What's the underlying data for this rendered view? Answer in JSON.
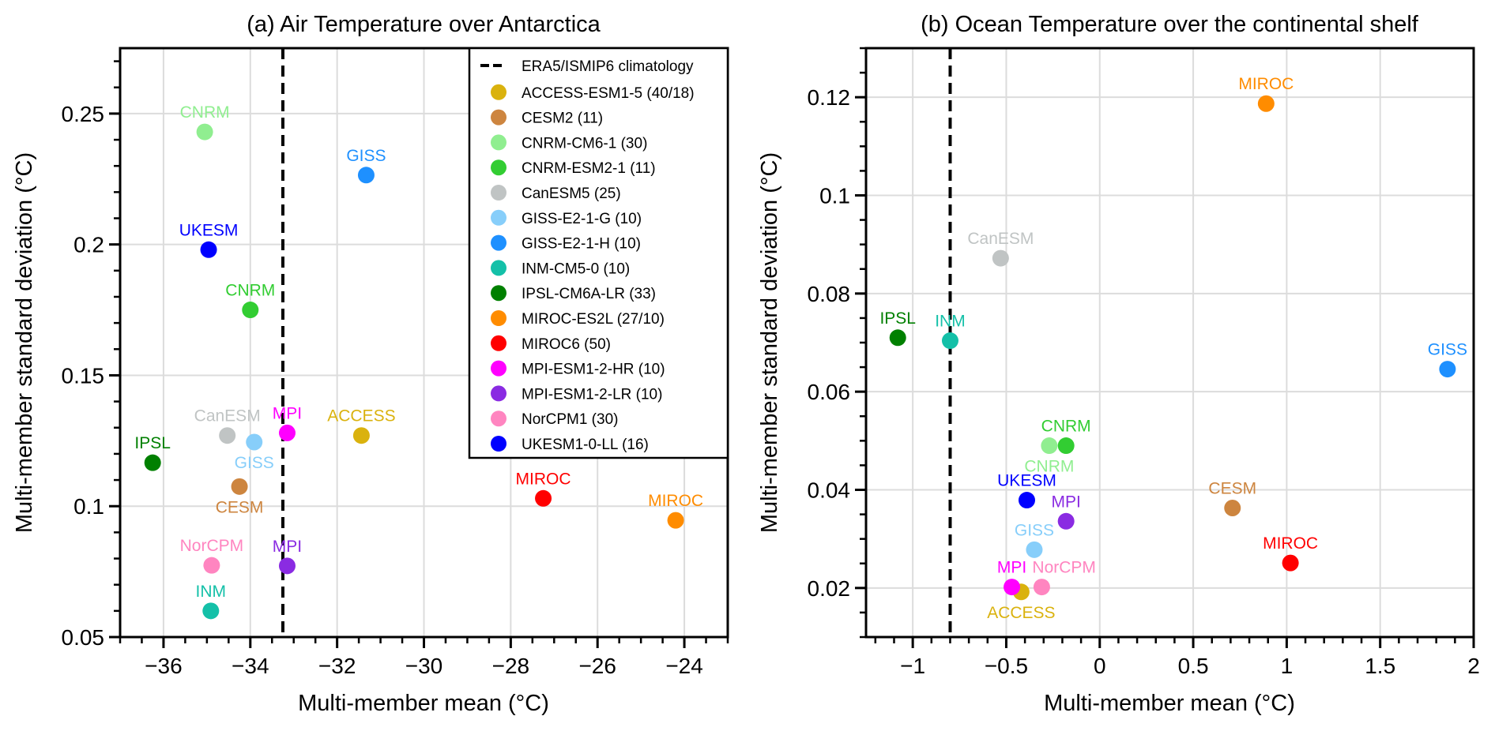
{
  "chart_data": [
    {
      "type": "scatter",
      "title": "(a) Air Temperature over Antarctica",
      "xlabel": "Multi-member mean (°C)",
      "ylabel": "Multi-member standard deviation (°C)",
      "xlim": [
        -37,
        -23
      ],
      "ylim": [
        0.05,
        0.275
      ],
      "xticks": [
        -36,
        -34,
        -32,
        -30,
        -28,
        -26,
        -24
      ],
      "xtick_labels": [
        "−36",
        "−34",
        "−32",
        "−30",
        "−28",
        "−26",
        "−24"
      ],
      "x_minor_step": 0.5,
      "yticks": [
        0.05,
        0.1,
        0.15,
        0.2,
        0.25
      ],
      "ytick_labels": [
        "0.05",
        "0.1",
        "0.15",
        "0.2",
        "0.25"
      ],
      "y_minor_step": 0.01,
      "grid": true,
      "reference_line": {
        "x": -33.25,
        "label": "ERA5/ISMIP6 climatology",
        "style": "dashed"
      },
      "legend_position": "top-right",
      "points": [
        {
          "model": "ACCESS-ESM1-5",
          "label": "ACCESS",
          "x": -31.44,
          "y": 0.127,
          "label_pos": "above"
        },
        {
          "model": "CESM2",
          "label": "CESM",
          "x": -34.25,
          "y": 0.1075,
          "label_pos": "below"
        },
        {
          "model": "CNRM-CM6-1",
          "label": "CNRM",
          "x": -35.05,
          "y": 0.243,
          "label_pos": "above"
        },
        {
          "model": "CNRM-ESM2-1",
          "label": "CNRM",
          "x": -34.0,
          "y": 0.175,
          "label_pos": "above"
        },
        {
          "model": "CanESM5",
          "label": "CanESM",
          "x": -34.53,
          "y": 0.127,
          "label_pos": "above"
        },
        {
          "model": "GISS-E2-1-G",
          "label": "GISS",
          "x": -33.91,
          "y": 0.1245,
          "label_pos": "below"
        },
        {
          "model": "GISS-E2-1-H",
          "label": "GISS",
          "x": -31.33,
          "y": 0.2265,
          "label_pos": "above"
        },
        {
          "model": "INM-CM5-0",
          "label": "INM",
          "x": -34.91,
          "y": 0.06,
          "label_pos": "above"
        },
        {
          "model": "IPSL-CM6A-LR",
          "label": "IPSL",
          "x": -36.25,
          "y": 0.1166,
          "label_pos": "above"
        },
        {
          "model": "MIROC-ES2L",
          "label": "MIROC",
          "x": -24.2,
          "y": 0.0946,
          "label_pos": "above"
        },
        {
          "model": "MIROC6",
          "label": "MIROC",
          "x": -27.25,
          "y": 0.103,
          "label_pos": "above"
        },
        {
          "model": "MPI-ESM1-2-HR",
          "label": "MPI",
          "x": -33.15,
          "y": 0.128,
          "label_pos": "above"
        },
        {
          "model": "MPI-ESM1-2-LR",
          "label": "MPI",
          "x": -33.15,
          "y": 0.0772,
          "label_pos": "above"
        },
        {
          "model": "NorCPM1",
          "label": "NorCPM",
          "x": -34.89,
          "y": 0.0774,
          "label_pos": "above"
        },
        {
          "model": "UKESM1-0-LL",
          "label": "UKESM",
          "x": -34.96,
          "y": 0.198,
          "label_pos": "above"
        }
      ]
    },
    {
      "type": "scatter",
      "title": "(b) Ocean Temperature over the continental shelf",
      "xlabel": "Multi-member mean (°C)",
      "ylabel": "Multi-member standard deviation (°C)",
      "xlim": [
        -1.25,
        2
      ],
      "ylim": [
        0.01,
        0.13
      ],
      "xticks": [
        -1,
        -0.5,
        0,
        0.5,
        1,
        1.5,
        2
      ],
      "xtick_labels": [
        "−1",
        "−0.5",
        "0",
        "0.5",
        "1",
        "1.5",
        "2"
      ],
      "x_minor_step": 0.1,
      "yticks": [
        0.02,
        0.04,
        0.06,
        0.08,
        0.1,
        0.12
      ],
      "ytick_labels": [
        "0.02",
        "0.04",
        "0.06",
        "0.08",
        "0.1",
        "0.12"
      ],
      "y_minor_step": 0.005,
      "grid": true,
      "reference_line": {
        "x": -0.8,
        "label": "ERA5/ISMIP6 climatology",
        "style": "dashed"
      },
      "points": [
        {
          "model": "ACCESS-ESM1-5",
          "label": "ACCESS",
          "x": -0.42,
          "y": 0.0192,
          "label_pos": "below"
        },
        {
          "model": "CESM2",
          "label": "CESM",
          "x": 0.71,
          "y": 0.0363,
          "label_pos": "above"
        },
        {
          "model": "CNRM-CM6-1",
          "label": "CNRM",
          "x": -0.27,
          "y": 0.049,
          "label_pos": "below"
        },
        {
          "model": "CNRM-ESM2-1",
          "label": "CNRM",
          "x": -0.18,
          "y": 0.049,
          "label_pos": "above"
        },
        {
          "model": "CanESM5",
          "label": "CanESM",
          "x": -0.53,
          "y": 0.0872,
          "label_pos": "above"
        },
        {
          "model": "GISS-E2-1-G",
          "label": "GISS",
          "x": -0.35,
          "y": 0.0278,
          "label_pos": "above"
        },
        {
          "model": "GISS-E2-1-H",
          "label": "GISS",
          "x": 1.86,
          "y": 0.0646,
          "label_pos": "above"
        },
        {
          "model": "INM-CM5-0",
          "label": "INM",
          "x": -0.8,
          "y": 0.0704,
          "label_pos": "above"
        },
        {
          "model": "IPSL-CM6A-LR",
          "label": "IPSL",
          "x": -1.08,
          "y": 0.071,
          "label_pos": "above"
        },
        {
          "model": "MIROC-ES2L",
          "label": "MIROC",
          "x": 0.89,
          "y": 0.1187,
          "label_pos": "above"
        },
        {
          "model": "MIROC6",
          "label": "MIROC",
          "x": 1.02,
          "y": 0.0251,
          "label_pos": "above"
        },
        {
          "model": "MPI-ESM1-2-HR",
          "label": "MPI",
          "x": -0.47,
          "y": 0.0202,
          "label_pos": "above"
        },
        {
          "model": "MPI-ESM1-2-LR",
          "label": "MPI",
          "x": -0.18,
          "y": 0.0336,
          "label_pos": "above"
        },
        {
          "model": "NorCPM1",
          "label": "NorCPM",
          "x": -0.31,
          "y": 0.0202,
          "label_pos": "above-right"
        },
        {
          "model": "UKESM1-0-LL",
          "label": "UKESM",
          "x": -0.39,
          "y": 0.0379,
          "label_pos": "above"
        }
      ]
    }
  ],
  "legend": {
    "line_entry": "ERA5/ISMIP6 climatology",
    "entries": [
      {
        "model": "ACCESS-ESM1-5",
        "text": "ACCESS-ESM1-5 (40/18)",
        "color": "#DAB20E"
      },
      {
        "model": "CESM2",
        "text": "CESM2 (11)",
        "color": "#CD853F"
      },
      {
        "model": "CNRM-CM6-1",
        "text": "CNRM-CM6-1 (30)",
        "color": "#90EE90"
      },
      {
        "model": "CNRM-ESM2-1",
        "text": "CNRM-ESM2-1 (11)",
        "color": "#32CD32"
      },
      {
        "model": "CanESM5",
        "text": "CanESM5 (25)",
        "color": "#C0C4C4"
      },
      {
        "model": "GISS-E2-1-G",
        "text": "GISS-E2-1-G (10)",
        "color": "#87CEFA"
      },
      {
        "model": "GISS-E2-1-H",
        "text": "GISS-E2-1-H (10)",
        "color": "#1E90FF"
      },
      {
        "model": "INM-CM5-0",
        "text": "INM-CM5-0 (10)",
        "color": "#14C0A8"
      },
      {
        "model": "IPSL-CM6A-LR",
        "text": "IPSL-CM6A-LR (33)",
        "color": "#008000"
      },
      {
        "model": "MIROC-ES2L",
        "text": "MIROC-ES2L (27/10)",
        "color": "#FF8C00"
      },
      {
        "model": "MIROC6",
        "text": "MIROC6 (50)",
        "color": "#FF0000"
      },
      {
        "model": "MPI-ESM1-2-HR",
        "text": "MPI-ESM1-2-HR (10)",
        "color": "#FF00FF"
      },
      {
        "model": "MPI-ESM1-2-LR",
        "text": "MPI-ESM1-2-LR (10)",
        "color": "#8A2BE2"
      },
      {
        "model": "NorCPM1",
        "text": "NorCPM1 (30)",
        "color": "#FF85C0"
      },
      {
        "model": "UKESM1-0-LL",
        "text": "UKESM1-0-LL (16)",
        "color": "#0000FF"
      }
    ]
  }
}
